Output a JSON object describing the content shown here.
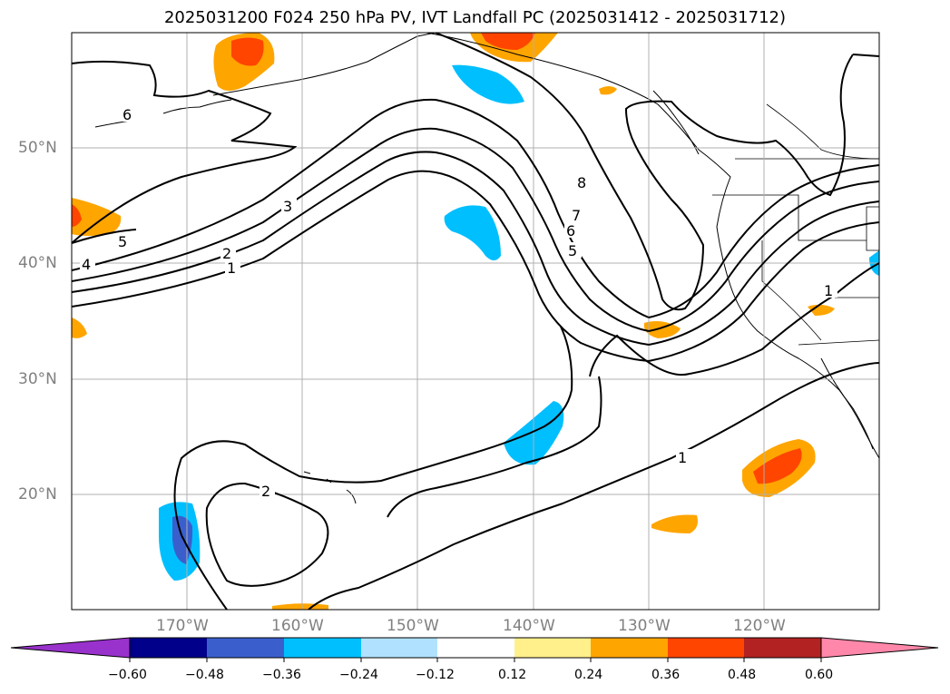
{
  "title": "2025031200 F024 250 hPa PV, IVT Landfall PC (2025031412 - 2025031712)",
  "map": {
    "lat_labels": [
      "50°N",
      "40°N",
      "30°N",
      "20°N"
    ],
    "lon_labels": [
      "170°W",
      "160°W",
      "150°W",
      "140°W",
      "130°W",
      "120°W"
    ],
    "pv_contour_labels": [
      "6",
      "5",
      "4",
      "3",
      "2",
      "1",
      "8",
      "7",
      "6",
      "5",
      "2",
      "1",
      "1"
    ]
  },
  "colorbar": {
    "tick_labels": [
      "−0.60",
      "−0.48",
      "−0.36",
      "−0.24",
      "−0.12",
      "0.12",
      "0.24",
      "0.36",
      "0.48",
      "0.60"
    ],
    "colors": [
      "#9932cc",
      "#00008b",
      "#3a5fcd",
      "#00bfff",
      "#b0e2ff",
      "#ffffff",
      "#fff08c",
      "#ffa500",
      "#ff4500",
      "#b22222",
      "#ff88aa"
    ]
  }
}
